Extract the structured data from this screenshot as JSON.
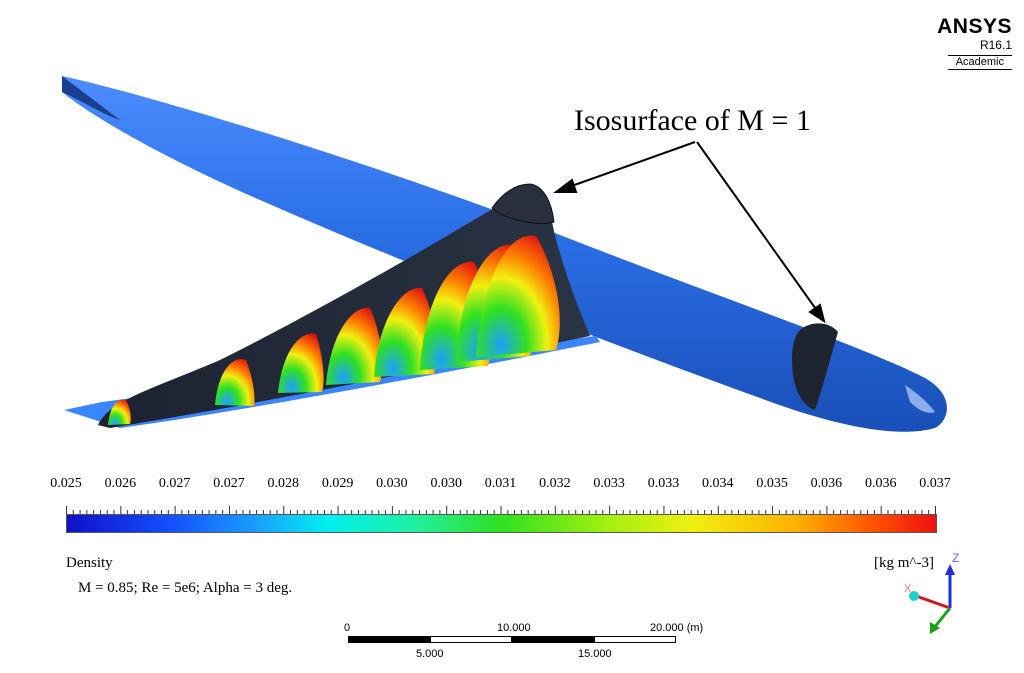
{
  "logo": {
    "brand": "ANSYS",
    "version": "R16.1",
    "edition": "Academic"
  },
  "annotation": {
    "text": "Isosurface of M = 1"
  },
  "legend": {
    "quantity": "Density",
    "units": "[kg m^-3]",
    "tick_labels": [
      "0.025",
      "0.026",
      "0.027",
      "0.027",
      "0.028",
      "0.029",
      "0.030",
      "0.030",
      "0.031",
      "0.032",
      "0.033",
      "0.033",
      "0.034",
      "0.035",
      "0.036",
      "0.036",
      "0.037"
    ],
    "colormap": [
      "#1010c8",
      "#1aa0ff",
      "#00f0f0",
      "#30e020",
      "#f0f010",
      "#ffb000",
      "#ee1010"
    ]
  },
  "conditions": "M = 0.85; Re = 5e6; Alpha = 3 deg.",
  "scale_bar": {
    "top_labels": [
      "0",
      "10.000",
      "20.000 (m)"
    ],
    "bottom_labels": [
      "5.000",
      "15.000"
    ]
  },
  "triad": {
    "z": "Z",
    "x": "X"
  },
  "colors": {
    "fuselage": "#2a6ee6",
    "isosurface": "#1e2530",
    "wing_underside": "#3a86ff"
  }
}
